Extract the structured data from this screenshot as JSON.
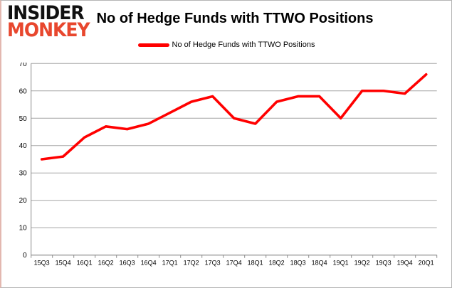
{
  "logo": {
    "line1": "INSIDER",
    "line2": "MONKEY",
    "accent_color": "#e8472e",
    "text_color": "#111111"
  },
  "header": {
    "title": "No of Hedge Funds with TTWO Positions"
  },
  "legend": {
    "label": "No of Hedge Funds with TTWO Positions",
    "swatch_color": "#ff0000"
  },
  "chart_data": {
    "type": "line",
    "title": "No of Hedge Funds with TTWO Positions",
    "xlabel": "",
    "ylabel": "",
    "categories": [
      "15Q3",
      "15Q4",
      "16Q1",
      "16Q2",
      "16Q3",
      "16Q4",
      "17Q1",
      "17Q2",
      "17Q3",
      "17Q4",
      "18Q1",
      "18Q2",
      "18Q3",
      "18Q4",
      "19Q1",
      "19Q2",
      "19Q3",
      "19Q4",
      "20Q1"
    ],
    "series": [
      {
        "name": "No of Hedge Funds with TTWO Positions",
        "color": "#ff0000",
        "values": [
          35,
          36,
          43,
          47,
          46,
          48,
          52,
          56,
          58,
          50,
          48,
          56,
          58,
          58,
          50,
          60,
          60,
          59,
          66
        ]
      }
    ],
    "ylim": [
      0,
      70
    ],
    "ytick_step": 10,
    "yticks": [
      "0",
      "10",
      "20",
      "30",
      "40",
      "50",
      "60",
      "70"
    ],
    "grid": true,
    "legend_position": "top-center",
    "colors": {
      "line": "#ff0000",
      "gridline": "#a6a6a6",
      "axis": "#8c8c8c",
      "tick_text": "#000000",
      "background": "#ffffff"
    }
  }
}
